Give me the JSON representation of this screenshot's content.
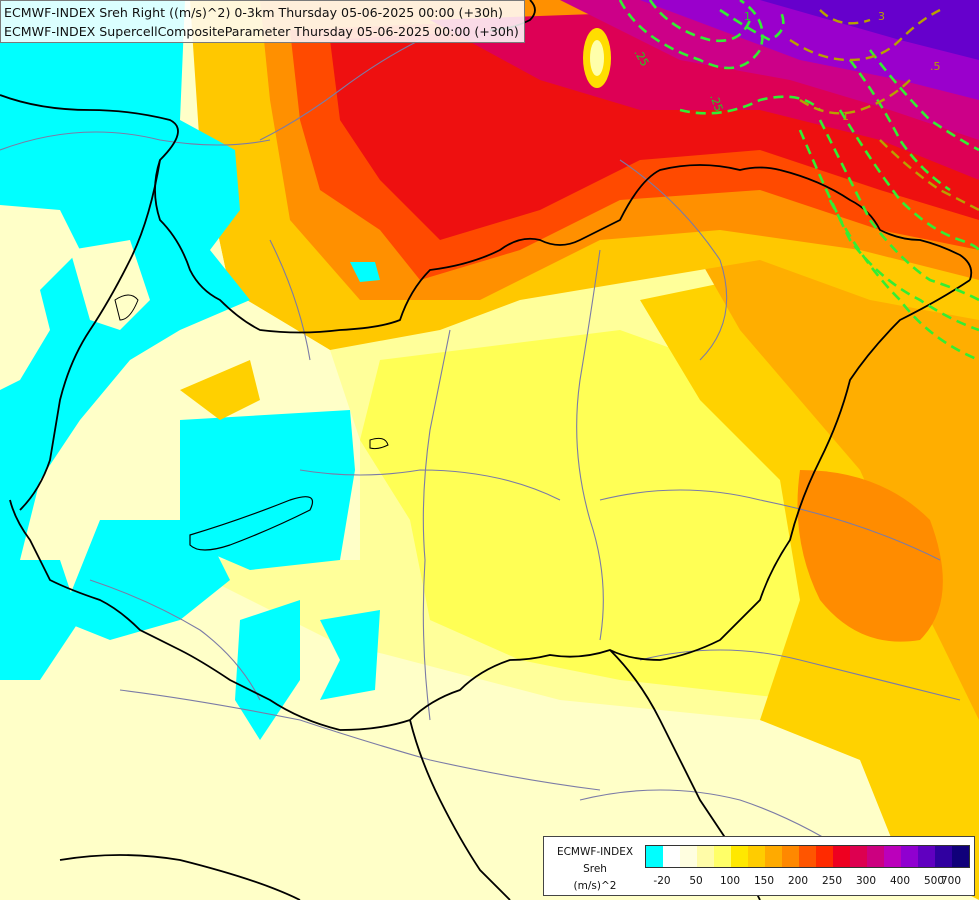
{
  "header": {
    "line1": "ECMWF-INDEX Sreh Right ((m/s)^2) 0-3km Thursday 05-06-2025 00:00 (+30h)",
    "line2": "ECMWF-INDEX SupercellCompositeParameter Thursday 05-06-2025 00:00 (+30h)"
  },
  "contour_labels": [
    ".25",
    ".25",
    "1",
    ".5",
    "1",
    "3"
  ],
  "legend": {
    "line1": "ECMWF-INDEX",
    "line2": "Sreh",
    "line3": "(m/s)^2",
    "ticks": [
      "-20",
      "50",
      "100",
      "150",
      "200",
      "250",
      "300",
      "400",
      "500",
      "700"
    ],
    "colors": [
      "#00ffff",
      "#ffffff",
      "#fffee0",
      "#fffca8",
      "#ffff68",
      "#ffe800",
      "#ffcc00",
      "#ffaa00",
      "#ff8800",
      "#ff5500",
      "#ff2a00",
      "#ee0020",
      "#dd0050",
      "#cc0080",
      "#bb00bb",
      "#9000d0",
      "#6000c0",
      "#3000a0",
      "#10007a"
    ]
  },
  "colors": {
    "cyan": "#00ffff",
    "border": "#000000",
    "river": "#7b7ba6",
    "scp_contour": "#33ee33",
    "scp_contour_alt": "#b8a000"
  }
}
